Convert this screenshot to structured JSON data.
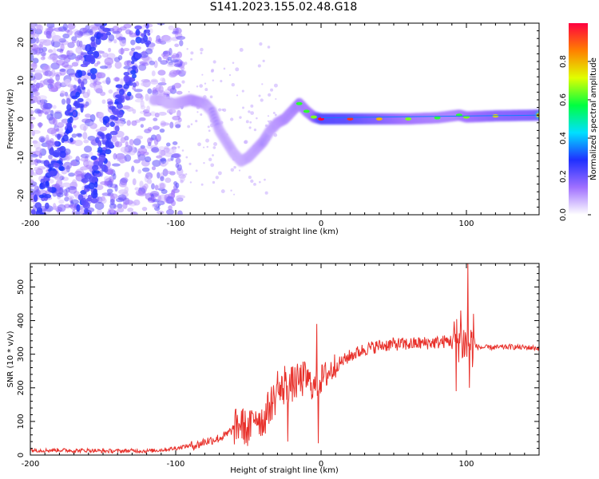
{
  "title": "S141.2023.155.02.48.G18",
  "chart_data": [
    {
      "type": "heatmap",
      "xlabel": "Height of straight line (km)",
      "ylabel": "Frequency (Hz)",
      "xlim": [
        -200,
        150
      ],
      "ylim": [
        -25,
        25
      ],
      "x_ticks": [
        -200,
        -100,
        0,
        100
      ],
      "y_ticks": [
        -20,
        -10,
        0,
        10,
        20
      ],
      "colorbar": {
        "label": "Normalized spectral amplitude",
        "range": [
          0,
          1
        ],
        "ticks": [
          0.0,
          0.2,
          0.4,
          0.6,
          0.8
        ],
        "colors": [
          "#ffffff",
          "#a070ff",
          "#2030ff",
          "#00e0ff",
          "#00ff40",
          "#e0ff00",
          "#ff8000",
          "#ff0040"
        ]
      },
      "ridge": {
        "x": [
          -115,
          -110,
          -105,
          -100,
          -95,
          -90,
          -85,
          -80,
          -75,
          -70,
          -65,
          -60,
          -55,
          -50,
          -45,
          -40,
          -35,
          -30,
          -25,
          -20,
          -15,
          -10,
          -5,
          0,
          20,
          40,
          60,
          80,
          95,
          100,
          120,
          150
        ],
        "y": [
          5,
          5,
          4,
          4,
          4.5,
          5,
          4.5,
          4,
          2,
          -3,
          -6,
          -9,
          -11,
          -10,
          -8,
          -6,
          -3,
          -1,
          0,
          2,
          4,
          2,
          0.5,
          0,
          0,
          0,
          0,
          0.3,
          1,
          0.5,
          0.8,
          1
        ],
        "amplitude": [
          0.3,
          0.35,
          0.3,
          0.3,
          0.35,
          0.4,
          0.45,
          0.4,
          0.3,
          0.3,
          0.3,
          0.3,
          0.3,
          0.35,
          0.35,
          0.4,
          0.35,
          0.4,
          0.45,
          0.45,
          0.5,
          0.5,
          0.55,
          0.9,
          0.85,
          0.7,
          0.55,
          0.5,
          0.5,
          0.55,
          0.65,
          0.7
        ]
      }
    },
    {
      "type": "line",
      "xlabel": "Height of straight line (km)",
      "ylabel": "SNR (10 * v/v)",
      "xlim": [
        -200,
        150
      ],
      "ylim": [
        0,
        570
      ],
      "x_ticks": [
        -200,
        -100,
        0,
        100
      ],
      "y_ticks": [
        0,
        100,
        200,
        300,
        400,
        500
      ],
      "series": [
        {
          "color": "#e8302a",
          "x": [
            -200,
            -190,
            -180,
            -170,
            -160,
            -150,
            -140,
            -130,
            -120,
            -110,
            -100,
            -95,
            -90,
            -85,
            -80,
            -75,
            -70,
            -65,
            -60,
            -55,
            -50,
            -45,
            -40,
            -35,
            -30,
            -25,
            -20,
            -15,
            -10,
            -5,
            0,
            5,
            10,
            15,
            20,
            25,
            30,
            35,
            40,
            50,
            60,
            70,
            80,
            90,
            95,
            100,
            105,
            110,
            120,
            130,
            140,
            150
          ],
          "y": [
            15,
            14,
            15,
            13,
            14,
            12,
            12,
            13,
            12,
            15,
            20,
            25,
            28,
            30,
            40,
            45,
            50,
            60,
            80,
            95,
            70,
            120,
            100,
            150,
            180,
            200,
            210,
            220,
            230,
            200,
            225,
            245,
            265,
            280,
            295,
            305,
            315,
            320,
            325,
            330,
            330,
            333,
            335,
            340,
            345,
            330,
            325,
            320,
            320,
            322,
            320,
            318
          ],
          "spikes": [
            {
              "x": -45,
              "y": 130
            },
            {
              "x": -30,
              "y": 250
            },
            {
              "x": -25,
              "y": 265
            },
            {
              "x": -23,
              "y": 40
            },
            {
              "x": -3,
              "y": 390
            },
            {
              "x": -2,
              "y": 35
            },
            {
              "x": 93,
              "y": 190
            },
            {
              "x": 96,
              "y": 430
            },
            {
              "x": 101,
              "y": 570
            },
            {
              "x": 102,
              "y": 200
            },
            {
              "x": 105,
              "y": 420
            }
          ]
        }
      ]
    }
  ]
}
